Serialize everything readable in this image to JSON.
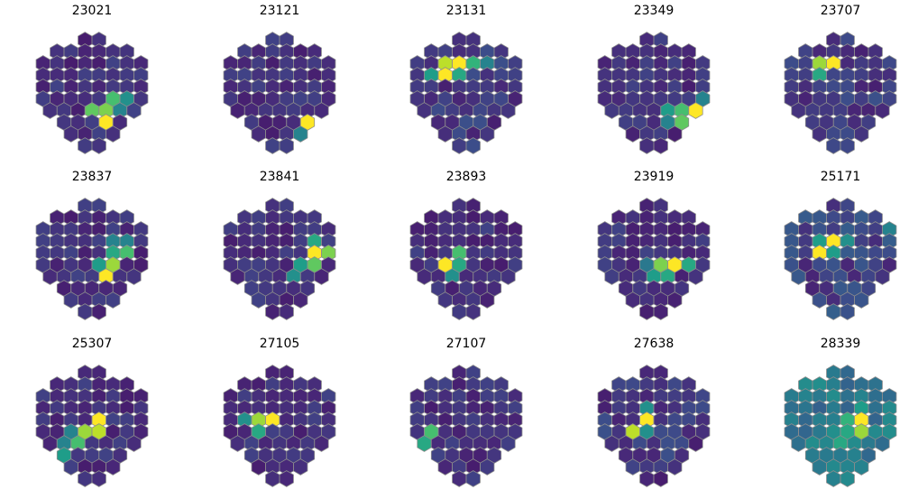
{
  "colormap": {
    "name": "viridis",
    "stops": [
      "#440154",
      "#482878",
      "#3e4989",
      "#31688e",
      "#26828e",
      "#1f9e89",
      "#35b779",
      "#6ece58",
      "#b5de2b",
      "#fde725"
    ],
    "edge_color": "#8c8c8c"
  },
  "chart_data": [
    {
      "type": "heatmap",
      "title": "23021",
      "hot_cells": [
        [
          5,
          1,
          0.7
        ],
        [
          5,
          2,
          0.5
        ],
        [
          6,
          0,
          0.75
        ],
        [
          6,
          1,
          0.8
        ],
        [
          6,
          2,
          0.45
        ],
        [
          7,
          1,
          1.0
        ]
      ],
      "background_levels": [
        0.08,
        0.2
      ]
    },
    {
      "type": "heatmap",
      "title": "23121",
      "hot_cells": [
        [
          7,
          2,
          1.0
        ],
        [
          8,
          1,
          0.45
        ],
        [
          8,
          2,
          1.0
        ],
        [
          9,
          1,
          0.65
        ],
        [
          9,
          2,
          0.75
        ]
      ],
      "background_levels": [
        0.08,
        0.2
      ]
    },
    {
      "type": "heatmap",
      "title": "23131",
      "hot_cells": [
        [
          2,
          -2,
          0.9
        ],
        [
          2,
          -1,
          1.0
        ],
        [
          2,
          0,
          0.65
        ],
        [
          2,
          1,
          0.45
        ],
        [
          3,
          -3,
          0.55
        ],
        [
          3,
          -2,
          1.0
        ],
        [
          3,
          -1,
          0.6
        ]
      ],
      "background_levels": [
        0.08,
        0.25
      ]
    },
    {
      "type": "heatmap",
      "title": "23349",
      "hot_cells": [
        [
          5,
          3,
          0.45
        ],
        [
          6,
          1,
          0.55
        ],
        [
          6,
          2,
          0.7
        ],
        [
          6,
          3,
          1.0
        ],
        [
          7,
          1,
          0.45
        ],
        [
          7,
          2,
          0.75
        ]
      ],
      "background_levels": [
        0.08,
        0.2
      ]
    },
    {
      "type": "heatmap",
      "title": "23707",
      "hot_cells": [
        [
          2,
          -2,
          0.85
        ],
        [
          2,
          -1,
          1.0
        ],
        [
          3,
          -2,
          0.6
        ]
      ],
      "background_levels": [
        0.08,
        0.25
      ]
    },
    {
      "type": "heatmap",
      "title": "23837",
      "hot_cells": [
        [
          3,
          1,
          0.45
        ],
        [
          3,
          2,
          0.45
        ],
        [
          4,
          1,
          0.6
        ],
        [
          4,
          2,
          0.7
        ],
        [
          5,
          0,
          0.55
        ],
        [
          5,
          1,
          0.85
        ],
        [
          6,
          1,
          1.0
        ]
      ],
      "background_levels": [
        0.08,
        0.2
      ]
    },
    {
      "type": "heatmap",
      "title": "23841",
      "hot_cells": [
        [
          3,
          2,
          0.6
        ],
        [
          4,
          2,
          1.0
        ],
        [
          4,
          3,
          0.8
        ],
        [
          5,
          1,
          0.55
        ],
        [
          5,
          2,
          0.75
        ],
        [
          6,
          1,
          0.5
        ]
      ],
      "background_levels": [
        0.08,
        0.2
      ]
    },
    {
      "type": "heatmap",
      "title": "23893",
      "hot_cells": [
        [
          4,
          -1,
          0.7
        ],
        [
          5,
          -1,
          0.6
        ],
        [
          5,
          -2,
          1.0
        ],
        [
          6,
          -1,
          0.5
        ]
      ],
      "background_levels": [
        0.08,
        0.2
      ]
    },
    {
      "type": "heatmap",
      "title": "23919",
      "hot_cells": [
        [
          5,
          0,
          0.8
        ],
        [
          5,
          1,
          1.0
        ],
        [
          5,
          2,
          0.6
        ],
        [
          5,
          -1,
          0.4
        ],
        [
          6,
          1,
          0.6
        ],
        [
          6,
          0,
          0.55
        ]
      ],
      "background_levels": [
        0.08,
        0.2
      ]
    },
    {
      "type": "heatmap",
      "title": "25171",
      "hot_cells": [
        [
          3,
          -2,
          0.55
        ],
        [
          3,
          -1,
          1.0
        ],
        [
          3,
          0,
          0.5
        ],
        [
          4,
          -2,
          1.0
        ],
        [
          4,
          -1,
          0.55
        ],
        [
          2,
          3,
          0.45
        ]
      ],
      "background_levels": [
        0.1,
        0.3
      ]
    },
    {
      "type": "heatmap",
      "title": "25307",
      "hot_cells": [
        [
          4,
          0,
          1.0
        ],
        [
          5,
          -1,
          0.85
        ],
        [
          5,
          0,
          0.9
        ],
        [
          5,
          -2,
          0.45
        ],
        [
          6,
          -1,
          0.7
        ],
        [
          6,
          -2,
          0.45
        ],
        [
          7,
          -2,
          0.55
        ]
      ],
      "background_levels": [
        0.08,
        0.2
      ]
    },
    {
      "type": "heatmap",
      "title": "27105",
      "hot_cells": [
        [
          4,
          -2,
          0.85
        ],
        [
          4,
          -1,
          1.0
        ],
        [
          4,
          -3,
          0.5
        ],
        [
          5,
          -2,
          0.6
        ]
      ],
      "background_levels": [
        0.08,
        0.2
      ]
    },
    {
      "type": "heatmap",
      "title": "27107",
      "hot_cells": [
        [
          5,
          -3,
          0.7
        ],
        [
          6,
          -4,
          1.0
        ],
        [
          6,
          -3,
          0.6
        ],
        [
          7,
          -3,
          0.5
        ]
      ],
      "background_levels": [
        0.08,
        0.2
      ]
    },
    {
      "type": "heatmap",
      "title": "27638",
      "hot_cells": [
        [
          3,
          -1,
          0.5
        ],
        [
          4,
          -1,
          1.0
        ],
        [
          5,
          -2,
          0.9
        ],
        [
          5,
          -1,
          0.5
        ]
      ],
      "background_levels": [
        0.08,
        0.25
      ]
    },
    {
      "type": "heatmap",
      "title": "28339",
      "hot_cells": [
        [
          3,
          1,
          0.55
        ],
        [
          4,
          0,
          0.65
        ],
        [
          4,
          1,
          1.0
        ],
        [
          5,
          0,
          0.6
        ],
        [
          5,
          1,
          0.85
        ],
        [
          6,
          0,
          0.6
        ],
        [
          2,
          1,
          0.45
        ]
      ],
      "background_levels": [
        0.3,
        0.5
      ]
    }
  ]
}
